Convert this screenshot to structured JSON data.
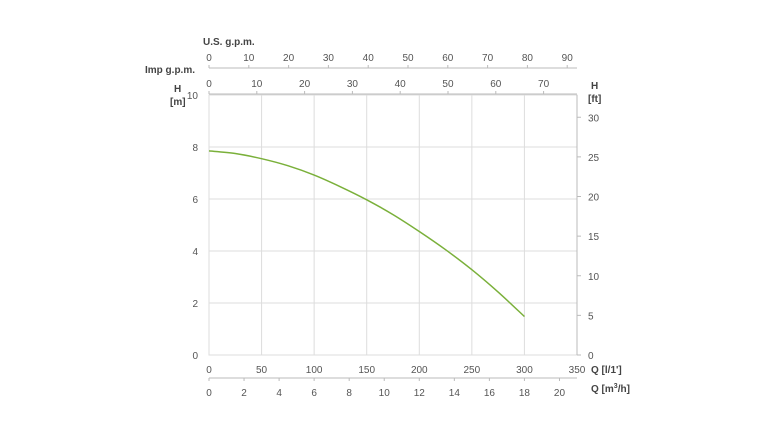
{
  "chart_data": {
    "type": "line",
    "title": "",
    "x_axes": {
      "usgpm": {
        "label": "U.S. g.p.m.",
        "ticks": [
          "0",
          "10",
          "20",
          "30",
          "40",
          "50",
          "60",
          "70",
          "80",
          "90"
        ]
      },
      "impgpm": {
        "label": "Imp g.p.m.",
        "ticks": [
          "0",
          "10",
          "20",
          "30",
          "40",
          "50",
          "60",
          "70"
        ]
      },
      "lmin": {
        "label": "Q [l/1']",
        "ticks": [
          "0",
          "50",
          "100",
          "150",
          "200",
          "250",
          "300",
          "350"
        ]
      },
      "m3h": {
        "label_main": "Q [m",
        "label_sup": "3",
        "label_end": "/h]",
        "ticks": [
          "0",
          "2",
          "4",
          "6",
          "8",
          "10",
          "12",
          "14",
          "16",
          "18",
          "20"
        ]
      }
    },
    "y_axes": {
      "m": {
        "label_top": "H",
        "label_bottom": "[m]",
        "ticks": [
          "0",
          "2",
          "4",
          "6",
          "8",
          "10"
        ],
        "range": [
          0,
          10
        ]
      },
      "ft": {
        "label_top": "H",
        "label_bottom": "[ft]",
        "ticks": [
          "0",
          "5",
          "10",
          "15",
          "20",
          "25",
          "30"
        ]
      }
    },
    "xlim": [
      0,
      350
    ],
    "ylim": [
      0,
      10
    ],
    "grid": true,
    "series": [
      {
        "x": [
          0,
          25,
          50,
          75,
          100,
          125,
          150,
          175,
          200,
          225,
          250,
          275,
          300
        ],
        "y": [
          7.85,
          7.75,
          7.55,
          7.28,
          6.92,
          6.47,
          5.97,
          5.4,
          4.75,
          4.05,
          3.28,
          2.42,
          1.48
        ],
        "color": "#7ab03a"
      }
    ],
    "colors": {
      "grid": "#dddddd",
      "axis": "#bbbbbb",
      "text": "#555555"
    }
  }
}
